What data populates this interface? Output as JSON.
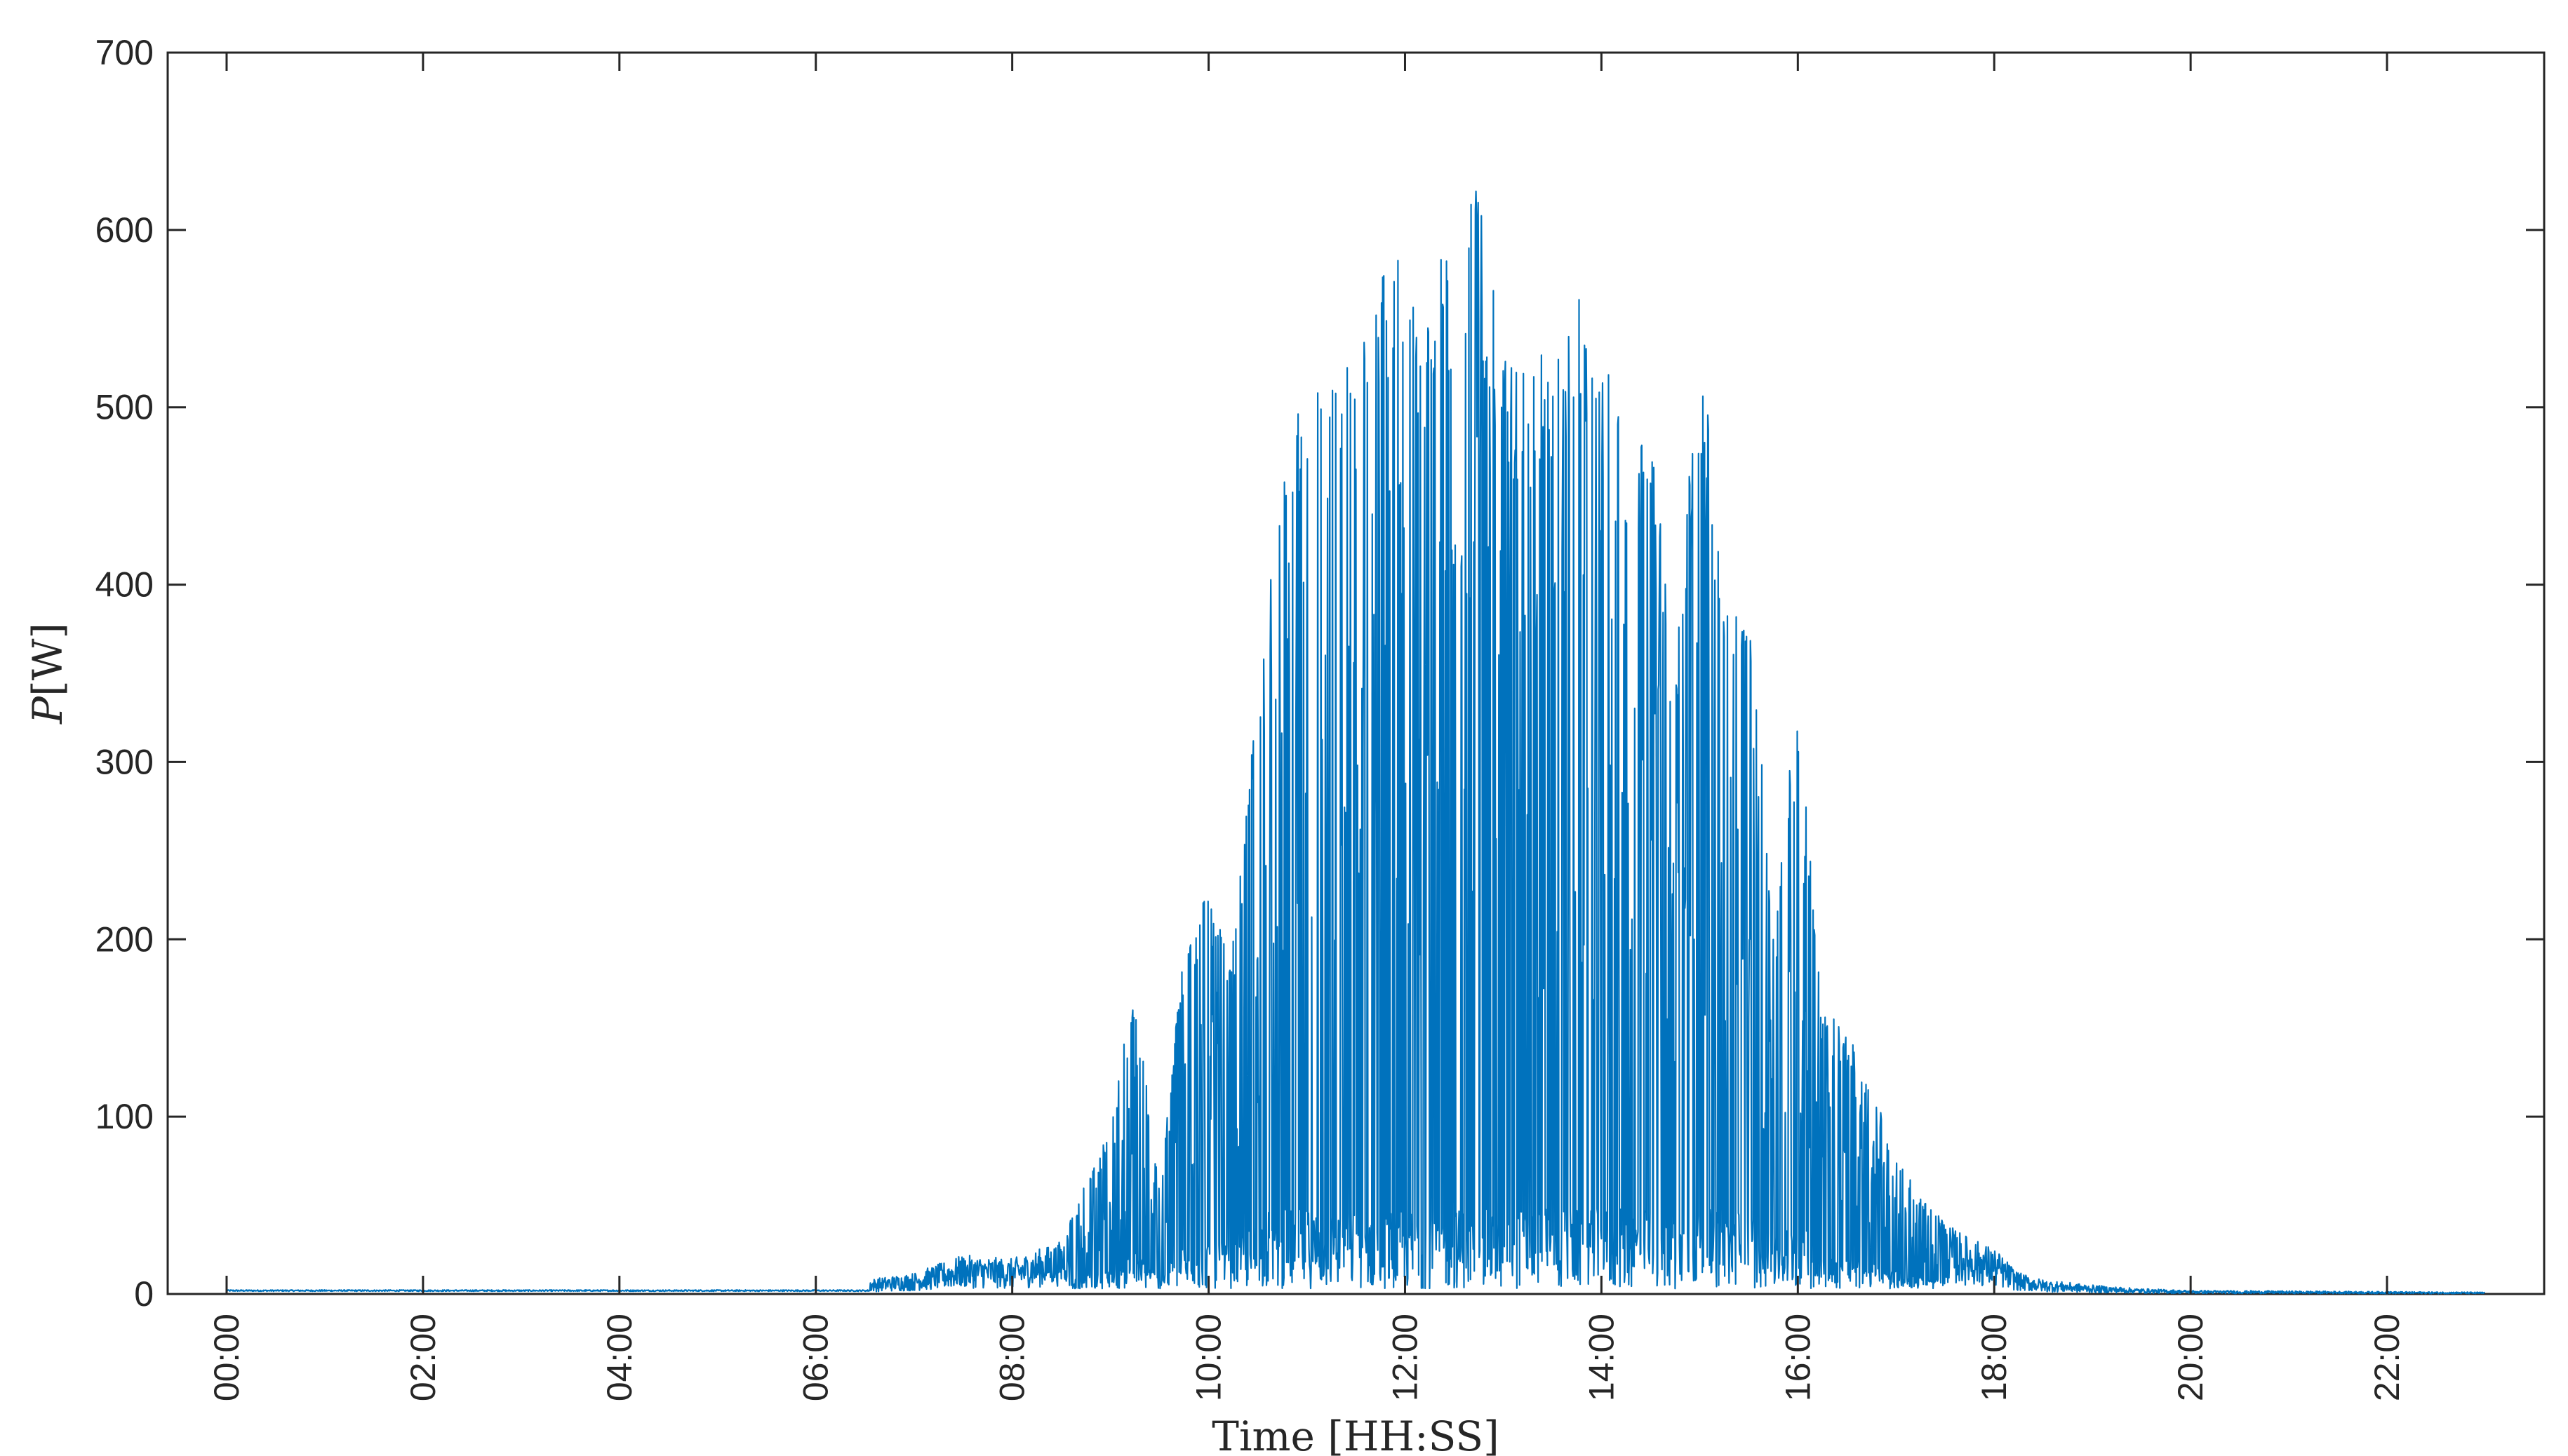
{
  "chart_data": {
    "type": "line",
    "title": "",
    "xlabel": "Time [HH:SS]",
    "ylabel": "P [W]",
    "ylabel_parts": {
      "symbol": "P",
      "unit": "[W]"
    },
    "y_ticks": [
      0,
      100,
      200,
      300,
      400,
      500,
      600,
      700
    ],
    "ylim": [
      0,
      700
    ],
    "x_ticks": [
      "00:00",
      "02:00",
      "04:00",
      "06:00",
      "08:00",
      "10:00",
      "12:00",
      "14:00",
      "16:00",
      "18:00",
      "20:00",
      "22:00"
    ],
    "xlim_hours": [
      -0.6,
      23.6
    ],
    "grid": false,
    "box": true,
    "series": [
      {
        "color": "#0072BD",
        "envelope": [
          {
            "t": "06:30",
            "p": 8
          },
          {
            "t": "07:00",
            "p": 12
          },
          {
            "t": "07:30",
            "p": 22
          },
          {
            "t": "08:00",
            "p": 20
          },
          {
            "t": "08:30",
            "p": 30
          },
          {
            "t": "09:00",
            "p": 95
          },
          {
            "t": "09:15",
            "p": 178
          },
          {
            "t": "09:30",
            "p": 58
          },
          {
            "t": "09:45",
            "p": 200
          },
          {
            "t": "10:00",
            "p": 232
          },
          {
            "t": "10:15",
            "p": 200
          },
          {
            "t": "10:30",
            "p": 340
          },
          {
            "t": "10:45",
            "p": 460
          },
          {
            "t": "11:00",
            "p": 518
          },
          {
            "t": "11:15",
            "p": 520
          },
          {
            "t": "11:30",
            "p": 535
          },
          {
            "t": "11:45",
            "p": 580
          },
          {
            "t": "12:00",
            "p": 585
          },
          {
            "t": "12:15",
            "p": 565
          },
          {
            "t": "12:30",
            "p": 605
          },
          {
            "t": "12:45",
            "p": 630
          },
          {
            "t": "13:00",
            "p": 530
          },
          {
            "t": "13:15",
            "p": 520
          },
          {
            "t": "13:30",
            "p": 545
          },
          {
            "t": "13:45",
            "p": 565
          },
          {
            "t": "14:00",
            "p": 540
          },
          {
            "t": "14:15",
            "p": 485
          },
          {
            "t": "14:30",
            "p": 490
          },
          {
            "t": "14:45",
            "p": 355
          },
          {
            "t": "15:00",
            "p": 545
          },
          {
            "t": "15:15",
            "p": 425
          },
          {
            "t": "15:30",
            "p": 380
          },
          {
            "t": "15:45",
            "p": 230
          },
          {
            "t": "16:00",
            "p": 335
          },
          {
            "t": "16:15",
            "p": 165
          },
          {
            "t": "16:30",
            "p": 148
          },
          {
            "t": "16:45",
            "p": 125
          },
          {
            "t": "17:00",
            "p": 80
          },
          {
            "t": "17:15",
            "p": 55
          },
          {
            "t": "17:30",
            "p": 40
          },
          {
            "t": "17:45",
            "p": 32
          },
          {
            "t": "18:00",
            "p": 26
          },
          {
            "t": "18:15",
            "p": 12
          },
          {
            "t": "18:30",
            "p": 8
          },
          {
            "t": "19:00",
            "p": 5
          },
          {
            "t": "19:30",
            "p": 3
          },
          {
            "t": "20:00",
            "p": 2
          },
          {
            "t": "23:00",
            "p": 1
          }
        ]
      }
    ]
  }
}
